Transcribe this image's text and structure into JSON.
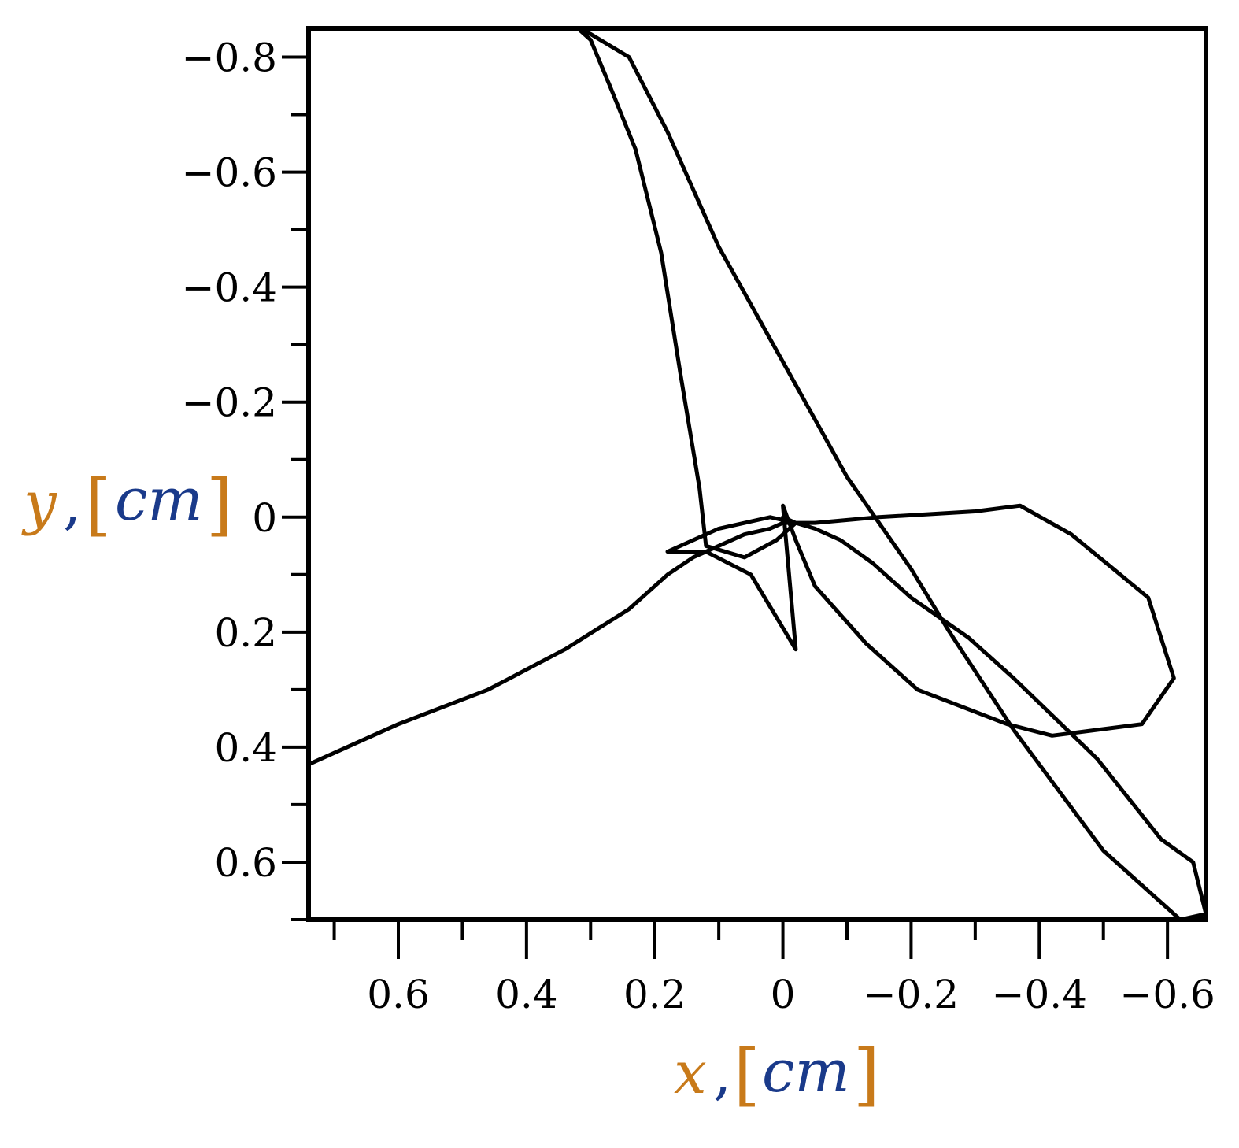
{
  "chart_data": {
    "type": "line",
    "title": "",
    "xlabel": {
      "variable": "x",
      "separator": ",",
      "unit": "cm"
    },
    "ylabel": {
      "variable": "y",
      "separator": ",",
      "unit": "cm"
    },
    "xlim": [
      0.74,
      -0.66
    ],
    "ylim": [
      0.7,
      -0.85
    ],
    "x_axis_reversed": true,
    "y_axis_reversed": true,
    "grid": false,
    "legend": "none",
    "x_ticks": [
      0.6,
      0.4,
      0.2,
      0,
      -0.2,
      -0.4,
      -0.6
    ],
    "x_tick_labels": [
      "0.6",
      "0.4",
      "0.2",
      "0",
      "−0.2",
      "−0.4",
      "−0.6"
    ],
    "x_minor_ticks": [
      0.7,
      0.5,
      0.3,
      0.1,
      -0.1,
      -0.3,
      -0.5
    ],
    "y_ticks": [
      -0.8,
      -0.6,
      -0.4,
      -0.2,
      0,
      0.2,
      0.4,
      0.6
    ],
    "y_tick_labels": [
      "−0.8",
      "−0.6",
      "−0.4",
      "−0.2",
      "0",
      "0.2",
      "0.4",
      "0.6"
    ],
    "y_minor_ticks": [
      -0.7,
      -0.5,
      -0.3,
      -0.1,
      0.1,
      0.3,
      0.5,
      0.7
    ],
    "line_color": "#000000",
    "label_colors": {
      "variable": "#c87a1a",
      "unit": "#1a3a8a"
    },
    "series": [
      {
        "x": [
          -0.02,
          -0.01,
          0.01,
          0.03,
          0.05,
          0.07,
          0.09,
          0.11,
          0.13,
          0.15,
          0.18,
          0.24,
          0.34,
          0.46,
          0.6,
          0.74
        ],
        "y": [
          0.01,
          0.01,
          0.01,
          0.01,
          0.02,
          0.02,
          0.03,
          0.04,
          0.05,
          0.07,
          0.1,
          0.16,
          0.23,
          0.3,
          0.36,
          0.43
        ]
      }
    ],
    "path": {
      "x": [
        0.74,
        0.6,
        0.46,
        0.34,
        0.24,
        0.18,
        0.14,
        0.1,
        0.06,
        0.02,
        0.0,
        -0.05,
        -0.15,
        -0.3,
        -0.37,
        -0.45,
        -0.57,
        -0.61,
        -0.56,
        -0.42,
        -0.35,
        -0.21,
        -0.13,
        -0.05,
        -0.02,
        -0.01,
        0.0,
        -0.02,
        0.05,
        0.12,
        0.18,
        0.1,
        0.02,
        -0.02,
        0.01,
        0.06,
        0.12,
        0.13,
        0.16,
        0.19,
        0.23,
        0.27,
        0.3,
        0.32,
        0.3,
        0.24,
        0.18,
        0.1,
        0.0,
        -0.1,
        -0.2,
        -0.26,
        -0.36,
        -0.5,
        -0.62,
        -0.66,
        -0.64,
        -0.59,
        -0.49,
        -0.36,
        -0.29,
        -0.2,
        -0.14,
        -0.09,
        -0.05,
        -0.02,
        0.0
      ],
      "y": [
        0.43,
        0.36,
        0.3,
        0.23,
        0.16,
        0.1,
        0.07,
        0.05,
        0.03,
        0.02,
        0.01,
        0.01,
        0.0,
        -0.01,
        -0.02,
        0.03,
        0.14,
        0.28,
        0.36,
        0.38,
        0.36,
        0.3,
        0.22,
        0.12,
        0.04,
        0.01,
        -0.02,
        0.23,
        0.1,
        0.06,
        0.06,
        0.02,
        0.0,
        0.01,
        0.04,
        0.07,
        0.05,
        -0.05,
        -0.25,
        -0.46,
        -0.64,
        -0.75,
        -0.83,
        -0.85,
        -0.84,
        -0.8,
        -0.67,
        -0.47,
        -0.27,
        -0.07,
        0.09,
        0.2,
        0.37,
        0.58,
        0.7,
        0.69,
        0.6,
        0.56,
        0.42,
        0.28,
        0.21,
        0.14,
        0.08,
        0.04,
        0.02,
        0.01,
        0.0
      ]
    }
  }
}
